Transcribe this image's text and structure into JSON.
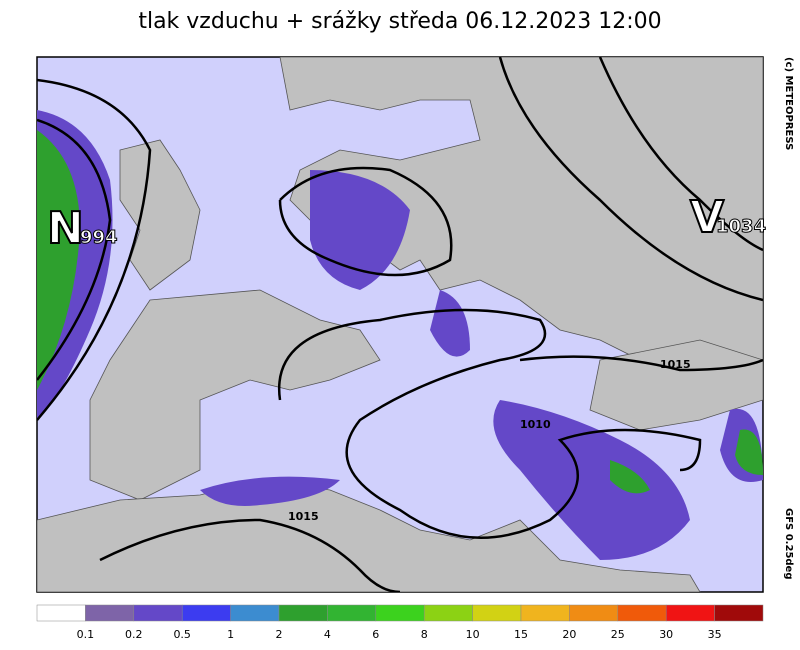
{
  "title": "tlak vzduchu + srážky  středa 06.12.2023 12:00",
  "pressure_centers": [
    {
      "letter": "N",
      "value": "994"
    },
    {
      "letter": "V",
      "value": "1034"
    }
  ],
  "isobar_labels": [
    "1015",
    "1010",
    "1015"
  ],
  "copyright": "(c) METEOPRESS",
  "model": "GFS 0.25deg",
  "legend": {
    "colors": [
      "#ffffff",
      "#7e64a8",
      "#6448c8",
      "#3c3cf0",
      "#3c8cd0",
      "#2ea02e",
      "#32b432",
      "#3cd21e",
      "#8cd214",
      "#d2d214",
      "#f0b41e",
      "#f08c14",
      "#f05a0a",
      "#f01414",
      "#a00a0a"
    ],
    "labels": [
      "0.1",
      "0.2",
      "0.5",
      "1",
      "2",
      "4",
      "6",
      "8",
      "10",
      "15",
      "20",
      "25",
      "30",
      "35"
    ]
  }
}
